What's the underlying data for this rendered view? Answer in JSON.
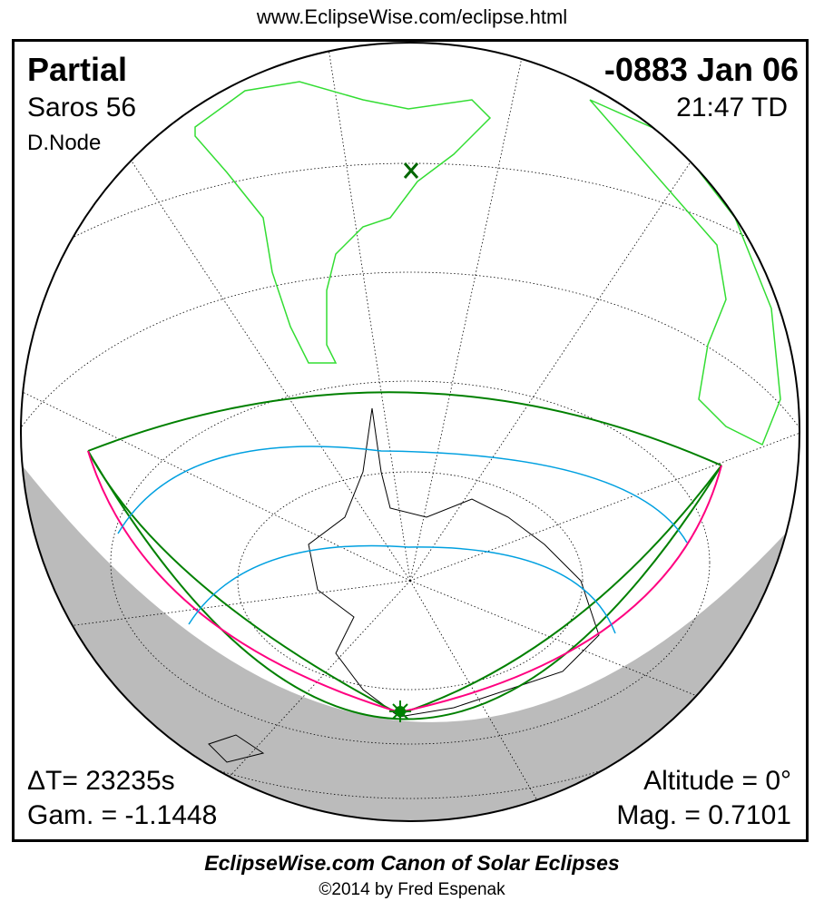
{
  "url": "www.EclipseWise.com/eclipse.html",
  "header": {
    "type": "Partial",
    "saros": "Saros  56",
    "node": "D.Node",
    "date": "-0883 Jan 06",
    "time": "21:47 TD"
  },
  "stats": {
    "delta_t": "ΔT=  23235s",
    "gamma": "Gam. = -1.1448",
    "altitude": "Altitude =  0°",
    "magnitude": "Mag. = 0.7101"
  },
  "footer": {
    "title": "EclipseWise.com Canon of Solar Eclipses",
    "copyright": "©2014 by Fred Espenak"
  },
  "colors": {
    "night": "#bbbbbb",
    "path_limits": "#008000",
    "max_eclipse_curve": "#ff0080",
    "magnitude_curves": "#00a0e0",
    "land_america_africa": "#33dd33",
    "antarctica": "#000000"
  }
}
